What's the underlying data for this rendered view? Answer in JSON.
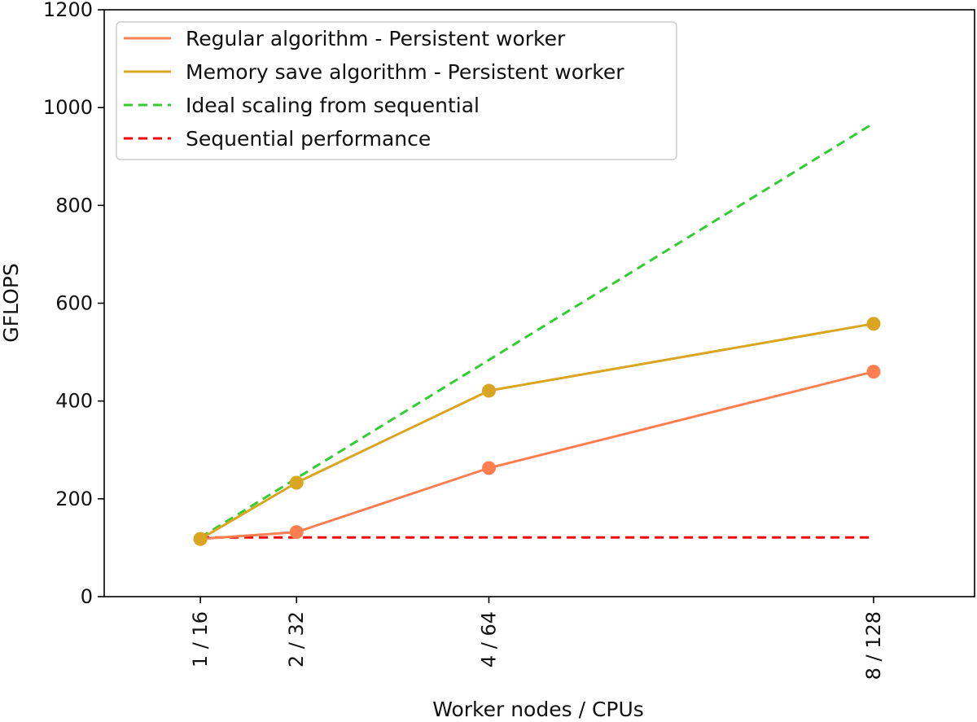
{
  "chart_data": {
    "type": "line",
    "title": "",
    "xlabel": "Worker nodes / CPUs",
    "ylabel": "GFLOPS",
    "categories": [
      "1 / 16",
      "2 / 32",
      "4 / 64",
      "8 / 128"
    ],
    "x": [
      1,
      2,
      4,
      8
    ],
    "xlim": [
      0,
      9.05
    ],
    "ylim": [
      0,
      1200
    ],
    "yticks": [
      0,
      200,
      400,
      600,
      800,
      1000,
      1200
    ],
    "grid": false,
    "legend_position": "upper-left",
    "series": [
      {
        "name": "Regular algorithm - Persistent worker",
        "values": [
          118,
          132,
          263,
          460
        ],
        "color": "#ff7f50",
        "style": "solid",
        "markers": true
      },
      {
        "name": "Memory save algorithm - Persistent worker",
        "values": [
          118,
          233,
          421,
          558
        ],
        "color": "#daa520",
        "style": "solid",
        "markers": true
      },
      {
        "name": "Ideal scaling from sequential",
        "values": [
          121,
          242,
          484,
          968
        ],
        "color": "#32cd32",
        "style": "dashed",
        "markers": false
      },
      {
        "name": "Sequential performance",
        "values": [
          121,
          121,
          121,
          121
        ],
        "color": "#ff0000",
        "style": "dashed",
        "markers": false
      }
    ]
  }
}
